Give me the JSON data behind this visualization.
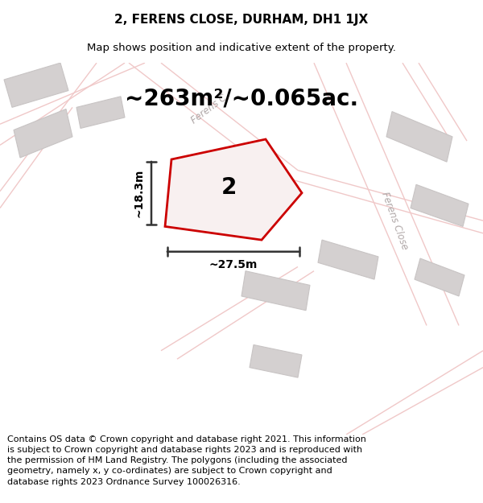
{
  "title": "2, FERENS CLOSE, DURHAM, DH1 1JX",
  "subtitle": "Map shows position and indicative extent of the property.",
  "area_text": "~263m²/~0.065ac.",
  "width_label": "~27.5m",
  "height_label": "~18.3m",
  "property_number": "2",
  "footer_text": "Contains OS data © Crown copyright and database right 2021. This information is subject to Crown copyright and database rights 2023 and is reproduced with the permission of HM Land Registry. The polygons (including the associated geometry, namely x, y co-ordinates) are subject to Crown copyright and database rights 2023 Ordnance Survey 100026316.",
  "map_bg": "#eeecec",
  "road_color": "#f0c8c8",
  "building_color": "#d4d0d0",
  "building_edge": "#c8c4c4",
  "plot_color": "#cc0000",
  "plot_fill": "#f8f0f0",
  "dim_color": "#333333",
  "text_color": "#000000",
  "street_label_color": "#b0a8a8",
  "title_fontsize": 11,
  "subtitle_fontsize": 9.5,
  "area_fontsize": 20,
  "dim_fontsize": 10,
  "footer_fontsize": 8,
  "number_fontsize": 20
}
